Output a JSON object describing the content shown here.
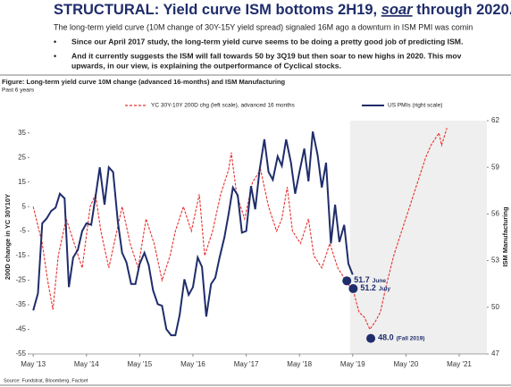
{
  "header": {
    "title": [
      "STRUCTURAL: Yield curve ISM bottoms 2H19, ",
      "soar",
      " through 2020..."
    ],
    "subtitle": "The long-term yield curve (10M change of 30Y-15Y yield spread) signaled 16M ago a downturn in ISM PMI was comin",
    "bullets": [
      "Since our April 2017 study, the long-term yield curve seems to be doing a pretty good job of predicting ISM.",
      "And it currently suggests the ISM will fall towards 50 by 3Q19 but then soar to new highs in 2020.  This mov",
      "upwards, in our view, is explaining the outperformance of Cyclical stocks."
    ]
  },
  "chart_data": {
    "type": "line",
    "title": "Figure: Long-term yield curve 10M change (advanced 16-months) and ISM Manufacturing",
    "subtitle": "Past 6 years",
    "y_label": "200D change in YC 30Y10Y",
    "y2_label": "ISM Manufacturing",
    "source": "Source: Fundstrat, Bloomberg, Factset",
    "xlim": [
      2013.26,
      2021.85
    ],
    "xticks": [
      {
        "value": 2013.33,
        "label": "May '13"
      },
      {
        "value": 2014.33,
        "label": "May '14"
      },
      {
        "value": 2015.33,
        "label": "May '15"
      },
      {
        "value": 2016.33,
        "label": "May '16"
      },
      {
        "value": 2017.33,
        "label": "May '17"
      },
      {
        "value": 2018.33,
        "label": "May '18"
      },
      {
        "value": 2019.33,
        "label": "May '19"
      },
      {
        "value": 2020.33,
        "label": "May '20"
      },
      {
        "value": 2021.33,
        "label": "May '21"
      }
    ],
    "ylim": [
      -55,
      40
    ],
    "yticks": [
      35,
      25,
      15,
      5,
      -5,
      -15,
      -25,
      -35,
      -45,
      -55
    ],
    "y2lim": [
      47,
      62
    ],
    "y2ticks": [
      62,
      59,
      56,
      53,
      50,
      47
    ],
    "shaded_range": [
      2019.28,
      2021.85
    ],
    "series": [
      {
        "name": "YC 30Y-10Y 200D chg (left scale), advanced 16 months",
        "color": "#e8312f",
        "dashed": true,
        "x": [
          2013.33,
          2013.5,
          2013.6,
          2013.7,
          2013.8,
          2013.95,
          2014.1,
          2014.25,
          2014.4,
          2014.5,
          2014.6,
          2014.75,
          2014.9,
          2015.0,
          2015.15,
          2015.3,
          2015.45,
          2015.6,
          2015.75,
          2015.9,
          2016.0,
          2016.15,
          2016.3,
          2016.45,
          2016.55,
          2016.7,
          2016.85,
          2017.0,
          2017.05,
          2017.15,
          2017.3,
          2017.45,
          2017.6,
          2017.75,
          2017.9,
          2018.0,
          2018.1,
          2018.2,
          2018.35,
          2018.5,
          2018.6,
          2018.75,
          2018.9,
          2019.05,
          2019.2,
          2019.35,
          2019.45,
          2019.55,
          2019.65,
          2019.75,
          2019.85,
          2019.95,
          2020.1,
          2020.25,
          2020.4,
          2020.55,
          2020.7,
          2020.8,
          2020.95,
          2021.0,
          2021.1
        ],
        "values": [
          5,
          -10,
          -25,
          -37,
          -15,
          0,
          -10,
          -20,
          5,
          10,
          -5,
          -20,
          -5,
          5,
          -10,
          -20,
          0,
          -10,
          -25,
          -15,
          -5,
          5,
          -5,
          10,
          -15,
          -5,
          10,
          20,
          27,
          10,
          0,
          15,
          20,
          5,
          -5,
          0,
          13,
          -5,
          -10,
          0,
          -15,
          -20,
          -10,
          -20,
          -25,
          -30,
          -38,
          -40,
          -45,
          -42,
          -38,
          -28,
          -15,
          -5,
          5,
          15,
          25,
          30,
          35,
          30,
          37
        ]
      },
      {
        "name": "US PMIs (right scale)",
        "color": "#1f2d6b",
        "axis": "y2",
        "x": [
          2013.33,
          2013.42,
          2013.5,
          2013.58,
          2013.67,
          2013.75,
          2013.83,
          2013.92,
          2014.0,
          2014.08,
          2014.17,
          2014.25,
          2014.33,
          2014.42,
          2014.5,
          2014.58,
          2014.67,
          2014.75,
          2014.83,
          2014.92,
          2015.0,
          2015.08,
          2015.17,
          2015.25,
          2015.33,
          2015.42,
          2015.5,
          2015.58,
          2015.67,
          2015.75,
          2015.83,
          2015.92,
          2016.0,
          2016.08,
          2016.17,
          2016.25,
          2016.33,
          2016.42,
          2016.5,
          2016.58,
          2016.67,
          2016.75,
          2016.83,
          2016.92,
          2017.0,
          2017.08,
          2017.17,
          2017.25,
          2017.33,
          2017.42,
          2017.5,
          2017.58,
          2017.67,
          2017.75,
          2017.83,
          2017.92,
          2018.0,
          2018.08,
          2018.17,
          2018.25,
          2018.33,
          2018.42,
          2018.5,
          2018.58,
          2018.67,
          2018.75,
          2018.83,
          2018.92,
          2019.0,
          2019.08,
          2019.17,
          2019.25,
          2019.33
        ],
        "values": [
          49.8,
          50.9,
          55.4,
          55.7,
          56.2,
          56.4,
          57.3,
          57.0,
          51.3,
          53.2,
          53.7,
          54.9,
          55.4,
          55.3,
          57.1,
          59.0,
          56.6,
          59.0,
          58.7,
          55.5,
          53.5,
          52.9,
          51.5,
          51.5,
          52.8,
          53.5,
          52.7,
          51.1,
          50.2,
          50.1,
          48.6,
          48.2,
          48.2,
          49.5,
          51.8,
          50.8,
          51.3,
          53.2,
          52.6,
          49.4,
          51.5,
          51.9,
          53.2,
          54.5,
          56.0,
          57.7,
          57.2,
          54.8,
          54.9,
          57.8,
          56.3,
          58.8,
          60.8,
          58.7,
          58.2,
          59.7,
          59.1,
          60.8,
          59.3,
          57.3,
          58.7,
          60.2,
          58.1,
          61.3,
          59.8,
          57.7,
          59.3,
          54.1,
          56.6,
          54.2,
          55.3,
          52.8,
          52.1
        ]
      }
    ],
    "annotations": [
      {
        "x": 2019.22,
        "value": 51.7,
        "label": "51.7",
        "note": "June"
      },
      {
        "x": 2019.34,
        "value": 51.2,
        "label": "51.2",
        "note": "July"
      },
      {
        "x": 2019.67,
        "value": 48,
        "label": "48.0",
        "note": "(Fall 2019)"
      }
    ]
  }
}
